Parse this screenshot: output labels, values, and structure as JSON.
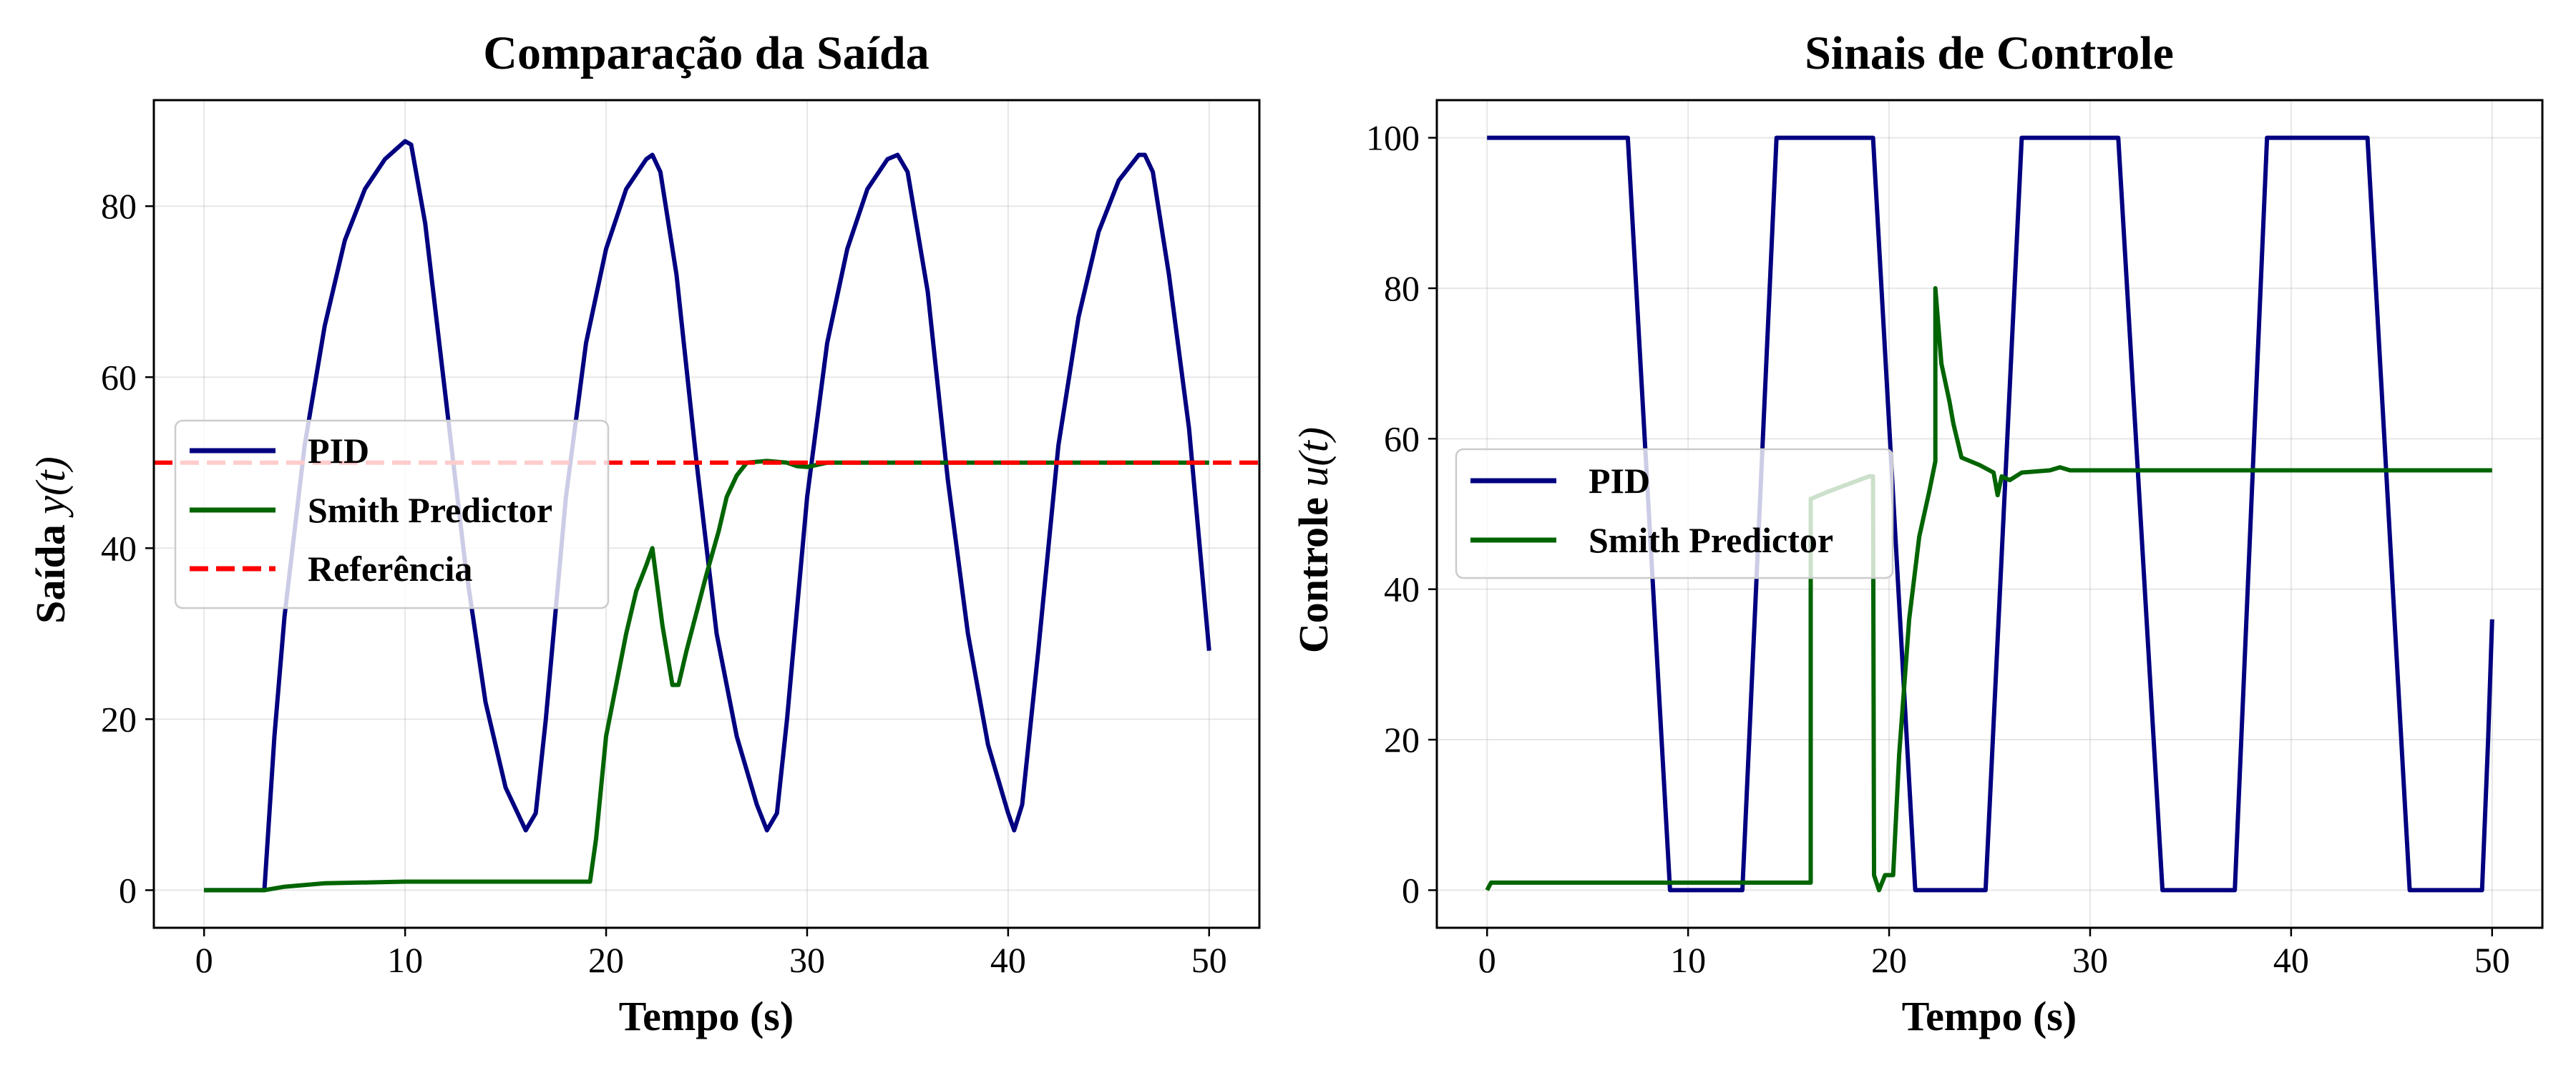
{
  "chart_data": [
    {
      "type": "line",
      "title": "Comparação da Saída",
      "xlabel": "Tempo (s)",
      "ylabel_text": "Saída",
      "ylabel_math": "y(t)",
      "xlim": [
        -2.5,
        52.5
      ],
      "ylim": [
        -4.4,
        92.4
      ],
      "xticks": [
        0,
        10,
        20,
        30,
        40,
        50
      ],
      "yticks": [
        0,
        20,
        40,
        60,
        80
      ],
      "grid": true,
      "legend_position": "center-left",
      "series": [
        {
          "name": "PID",
          "color": "#000080",
          "style": "solid",
          "points": [
            [
              0,
              0
            ],
            [
              3,
              0
            ],
            [
              3.5,
              18
            ],
            [
              4,
              32
            ],
            [
              5,
              52
            ],
            [
              6,
              66
            ],
            [
              7,
              76
            ],
            [
              8,
              82
            ],
            [
              9,
              85.5
            ],
            [
              10,
              87.6
            ],
            [
              10.3,
              87.2
            ],
            [
              11,
              78
            ],
            [
              12,
              58
            ],
            [
              13,
              38
            ],
            [
              14,
              22
            ],
            [
              15,
              12
            ],
            [
              16,
              7
            ],
            [
              16.5,
              9
            ],
            [
              17,
              20
            ],
            [
              18,
              46
            ],
            [
              19,
              64
            ],
            [
              20,
              75
            ],
            [
              21,
              82
            ],
            [
              22,
              85.5
            ],
            [
              22.3,
              86
            ],
            [
              22.7,
              84
            ],
            [
              23.5,
              72
            ],
            [
              24.5,
              50
            ],
            [
              25.5,
              30
            ],
            [
              26.5,
              18
            ],
            [
              27.5,
              10
            ],
            [
              28,
              7
            ],
            [
              28.5,
              9
            ],
            [
              29,
              20
            ],
            [
              30,
              46
            ],
            [
              31,
              64
            ],
            [
              32,
              75
            ],
            [
              33,
              82
            ],
            [
              34,
              85.5
            ],
            [
              34.5,
              86
            ],
            [
              35,
              84
            ],
            [
              36,
              70
            ],
            [
              37,
              48
            ],
            [
              38,
              30
            ],
            [
              39,
              17
            ],
            [
              40,
              9
            ],
            [
              40.3,
              7
            ],
            [
              40.7,
              10
            ],
            [
              41.5,
              28
            ],
            [
              42.5,
              52
            ],
            [
              43.5,
              67
            ],
            [
              44.5,
              77
            ],
            [
              45.5,
              83
            ],
            [
              46.5,
              86
            ],
            [
              46.8,
              86
            ],
            [
              47.2,
              84
            ],
            [
              48,
              72
            ],
            [
              49,
              54
            ],
            [
              50,
              28
            ]
          ]
        },
        {
          "name": "Smith Predictor",
          "color": "#006400",
          "style": "solid",
          "points": [
            [
              0,
              0
            ],
            [
              3,
              0
            ],
            [
              4,
              0.4
            ],
            [
              6,
              0.8
            ],
            [
              10,
              1
            ],
            [
              19.2,
              1
            ],
            [
              19.5,
              6
            ],
            [
              20,
              18
            ],
            [
              21,
              30
            ],
            [
              21.5,
              35
            ],
            [
              22,
              38
            ],
            [
              22.3,
              40
            ],
            [
              22.8,
              31
            ],
            [
              23.3,
              24
            ],
            [
              23.6,
              24
            ],
            [
              24,
              28
            ],
            [
              25,
              37
            ],
            [
              25.6,
              42
            ],
            [
              26,
              46
            ],
            [
              26.5,
              48.5
            ],
            [
              27,
              50
            ],
            [
              28,
              50.2
            ],
            [
              29,
              50
            ],
            [
              29.5,
              49.6
            ],
            [
              30,
              49.5
            ],
            [
              31,
              50
            ],
            [
              32,
              50
            ],
            [
              50,
              50
            ]
          ]
        },
        {
          "name": "Referência",
          "color": "#ff0000",
          "style": "dashed",
          "points": [
            [
              -2.5,
              50
            ],
            [
              52.5,
              50
            ]
          ]
        }
      ]
    },
    {
      "type": "line",
      "title": "Sinais de Controle",
      "xlabel": "Tempo (s)",
      "ylabel_text": "Controle",
      "ylabel_math": "u(t)",
      "xlim": [
        -2.5,
        52.5
      ],
      "ylim": [
        -5,
        105
      ],
      "xticks": [
        0,
        10,
        20,
        30,
        40,
        50
      ],
      "yticks": [
        0,
        20,
        40,
        60,
        80,
        100
      ],
      "grid": true,
      "legend_position": "center-left",
      "series": [
        {
          "name": "PID",
          "color": "#000080",
          "style": "solid",
          "points": [
            [
              0,
              100
            ],
            [
              7,
              100
            ],
            [
              9.1,
              0
            ],
            [
              12.7,
              0
            ],
            [
              14.4,
              100
            ],
            [
              19.2,
              100
            ],
            [
              21.3,
              0
            ],
            [
              24.8,
              0
            ],
            [
              26.6,
              100
            ],
            [
              31.4,
              100
            ],
            [
              33.6,
              0
            ],
            [
              37.2,
              0
            ],
            [
              38.8,
              100
            ],
            [
              43.8,
              100
            ],
            [
              45.9,
              0
            ],
            [
              49.5,
              0
            ],
            [
              49.8,
              20
            ],
            [
              50,
              36
            ]
          ]
        },
        {
          "name": "Smith Predictor",
          "color": "#006400",
          "style": "solid",
          "points": [
            [
              0,
              0
            ],
            [
              0.2,
              1
            ],
            [
              16.1,
              1
            ],
            [
              16.1,
              52
            ],
            [
              17,
              53
            ],
            [
              18,
              54
            ],
            [
              19,
              55
            ],
            [
              19.2,
              55
            ],
            [
              19.25,
              2
            ],
            [
              19.5,
              0
            ],
            [
              19.8,
              2
            ],
            [
              20.2,
              2
            ],
            [
              20.5,
              18
            ],
            [
              21,
              36
            ],
            [
              21.5,
              47
            ],
            [
              22,
              53
            ],
            [
              22.3,
              57
            ],
            [
              22.3,
              80
            ],
            [
              22.6,
              70
            ],
            [
              23,
              65
            ],
            [
              23.2,
              62
            ],
            [
              23.6,
              57.5
            ],
            [
              24.5,
              56.5
            ],
            [
              25.2,
              55.5
            ],
            [
              25.4,
              52.5
            ],
            [
              25.6,
              55
            ],
            [
              26,
              54.5
            ],
            [
              26.6,
              55.5
            ],
            [
              28,
              55.8
            ],
            [
              28.5,
              56.2
            ],
            [
              29,
              55.8
            ],
            [
              50,
              55.8
            ]
          ]
        }
      ]
    }
  ]
}
